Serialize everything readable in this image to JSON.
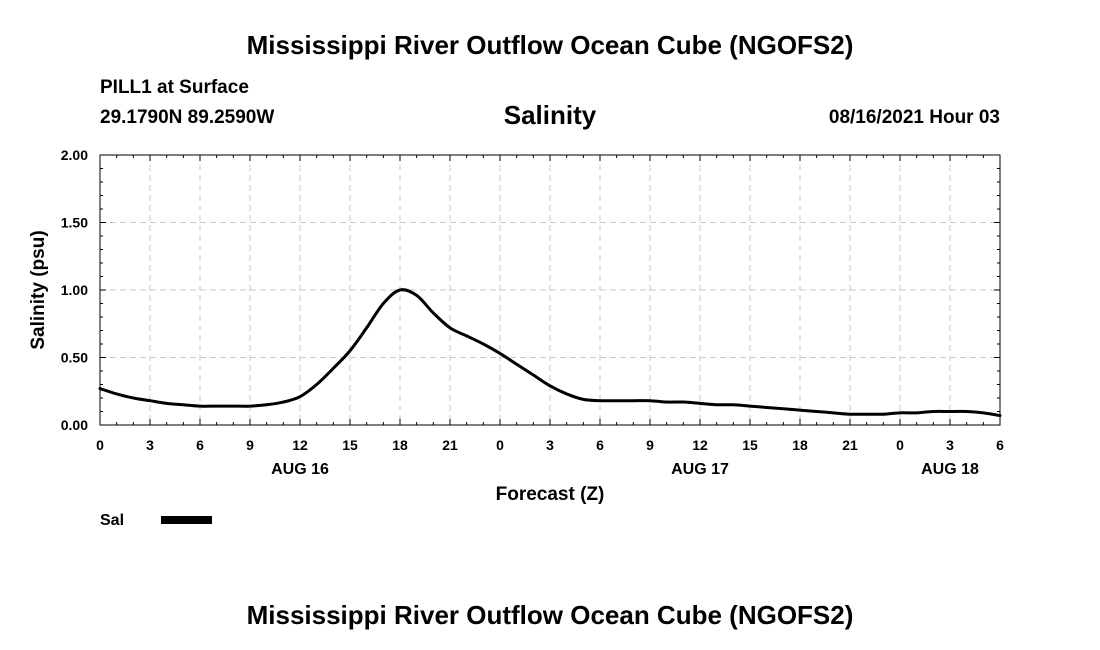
{
  "header": {
    "title": "Mississippi River Outflow Ocean Cube (NGOFS2)",
    "station": "PILL1 at Surface",
    "coords": "29.1790N  89.2590W",
    "variable": "Salinity",
    "datetime": "08/16/2021 Hour 03"
  },
  "footer": {
    "title": "Mississippi River Outflow Ocean Cube (NGOFS2)"
  },
  "chart_data": {
    "type": "line",
    "title": "Salinity",
    "xlabel": "Forecast (Z)",
    "ylabel": "Salinity (psu)",
    "xlim": [
      0,
      54
    ],
    "ylim": [
      0,
      2
    ],
    "grid": true,
    "yticks": [
      0,
      0.5,
      1.0,
      1.5,
      2.0
    ],
    "ytick_labels": [
      "0.00",
      "0.50",
      "1.00",
      "1.50",
      "2.00"
    ],
    "xticks": [
      0,
      3,
      6,
      9,
      12,
      15,
      18,
      21,
      24,
      27,
      30,
      33,
      36,
      39,
      42,
      45,
      48,
      51,
      54
    ],
    "xtick_labels": [
      "0",
      "3",
      "6",
      "9",
      "12",
      "15",
      "18",
      "21",
      "0",
      "3",
      "6",
      "9",
      "12",
      "15",
      "18",
      "21",
      "0",
      "3",
      "6"
    ],
    "date_labels": [
      {
        "x": 12,
        "label": "AUG 16"
      },
      {
        "x": 36,
        "label": "AUG 17"
      },
      {
        "x": 51,
        "label": "AUG 18"
      }
    ],
    "legend": {
      "label": "Sal",
      "placement": "bottom-left"
    },
    "series": [
      {
        "name": "Sal",
        "x": [
          0,
          1,
          2,
          3,
          4,
          5,
          6,
          7,
          8,
          9,
          10,
          11,
          12,
          13,
          14,
          15,
          16,
          17,
          18,
          19,
          20,
          21,
          22,
          23,
          24,
          25,
          26,
          27,
          28,
          29,
          30,
          31,
          32,
          33,
          34,
          35,
          36,
          37,
          38,
          39,
          40,
          41,
          42,
          43,
          44,
          45,
          46,
          47,
          48,
          49,
          50,
          51,
          52,
          53,
          54
        ],
        "values": [
          0.27,
          0.23,
          0.2,
          0.18,
          0.16,
          0.15,
          0.14,
          0.14,
          0.14,
          0.14,
          0.15,
          0.17,
          0.21,
          0.3,
          0.42,
          0.55,
          0.72,
          0.9,
          1.0,
          0.96,
          0.83,
          0.72,
          0.66,
          0.6,
          0.53,
          0.45,
          0.37,
          0.29,
          0.23,
          0.19,
          0.18,
          0.18,
          0.18,
          0.18,
          0.17,
          0.17,
          0.16,
          0.15,
          0.15,
          0.14,
          0.13,
          0.12,
          0.11,
          0.1,
          0.09,
          0.08,
          0.08,
          0.08,
          0.09,
          0.09,
          0.1,
          0.1,
          0.1,
          0.09,
          0.07
        ]
      }
    ]
  }
}
